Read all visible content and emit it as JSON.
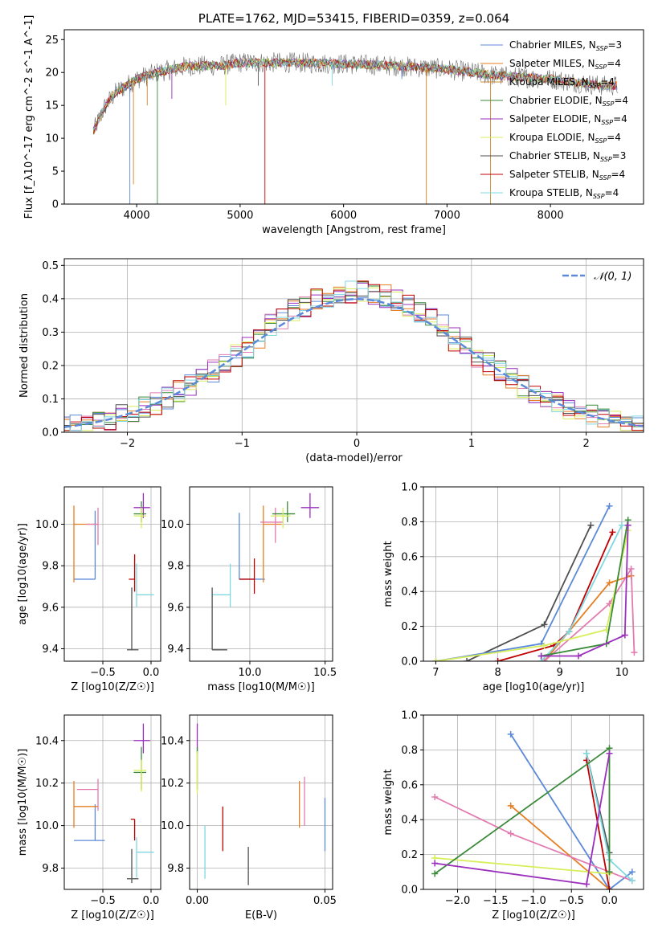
{
  "colors": {
    "Chabrier MILES": "#5b8ad8",
    "Salpeter MILES": "#e67e22",
    "Kroupa MILES": "#c98a30",
    "Chabrier ELODIE": "#3a8a3a",
    "Salpeter ELODIE": "#9b2fbe",
    "Kroupa ELODIE": "#d8ee58",
    "Chabrier STELIB": "#505050",
    "Salpeter STELIB": "#c00000",
    "Kroupa STELIB": "#7fd8e0",
    "pink": "#e27bb0",
    "normal_curve": "#5b8ad8"
  },
  "chart_data": [
    {
      "id": "spectrum",
      "type": "line",
      "title": "PLATE=1762, MJD=53415, FIBERID=0359, z=0.064",
      "xlabel": "wavelength [Angstrom, rest frame]",
      "ylabel": "Flux [f_λ10^-17 erg cm^-2 s^-1 A^-1]",
      "xlim": [
        3300,
        8900
      ],
      "ylim": [
        0,
        26.5
      ],
      "xticks": [
        4000,
        5000,
        6000,
        7000,
        8000
      ],
      "yticks": [
        0,
        5,
        10,
        15,
        20,
        25
      ],
      "legend_position": "top-right",
      "legend": [
        {
          "label": "Chabrier MILES, N_SSP=3",
          "color": "#5b8ad8"
        },
        {
          "label": "Salpeter MILES, N_SSP=4",
          "color": "#e67e22"
        },
        {
          "label": "Kroupa MILES, N_SSP=4",
          "color": "#c98a30"
        },
        {
          "label": "Chabrier ELODIE, N_SSP=4",
          "color": "#3a8a3a"
        },
        {
          "label": "Salpeter ELODIE, N_SSP=4",
          "color": "#9b2fbe"
        },
        {
          "label": "Kroupa ELODIE, N_SSP=4",
          "color": "#d8ee58"
        },
        {
          "label": "Chabrier STELIB, N_SSP=3",
          "color": "#505050"
        },
        {
          "label": "Salpeter STELIB, N_SSP=4",
          "color": "#c00000"
        },
        {
          "label": "Kroupa STELIB, N_SSP=4",
          "color": "#7fd8e0"
        }
      ],
      "continuum": [
        [
          3580,
          11
        ],
        [
          3700,
          15
        ],
        [
          3800,
          17
        ],
        [
          3900,
          18
        ],
        [
          4000,
          19
        ],
        [
          4200,
          20
        ],
        [
          4500,
          21
        ],
        [
          4800,
          21
        ],
        [
          5000,
          21.5
        ],
        [
          5500,
          21.5
        ],
        [
          6000,
          21.3
        ],
        [
          6500,
          21
        ],
        [
          7000,
          20.5
        ],
        [
          7500,
          19.5
        ],
        [
          8000,
          19
        ],
        [
          8500,
          18
        ]
      ],
      "absorption_lines": [
        [
          3934,
          0
        ],
        [
          3969,
          3
        ],
        [
          4102,
          15
        ],
        [
          4200,
          0
        ],
        [
          4340,
          16
        ],
        [
          4861,
          15
        ],
        [
          5175,
          18
        ],
        [
          5240,
          0
        ],
        [
          5890,
          18
        ],
        [
          6563,
          19
        ],
        [
          6800,
          0
        ],
        [
          7420,
          0
        ]
      ]
    },
    {
      "id": "residuals",
      "type": "line",
      "xlabel": "(data-model)/error",
      "ylabel": "Normed distribution",
      "xlim": [
        -2.55,
        2.5
      ],
      "ylim": [
        0,
        0.52
      ],
      "xticks": [
        -2,
        -1,
        0,
        1,
        2
      ],
      "yticks": [
        0.0,
        0.1,
        0.2,
        0.3,
        0.4,
        0.5
      ],
      "grid": true,
      "legend_position": "top-right",
      "legend": [
        {
          "label": "𝒩(0, 1)",
          "color": "#5b8ad8",
          "style": "dashed"
        }
      ],
      "series": [
        {
          "name": "𝒩(0, 1)",
          "mean": 0,
          "sigma": 1
        }
      ],
      "histogram_bin_width": 0.1
    },
    {
      "id": "age_vs_Z",
      "type": "scatter",
      "xlabel": "Z [log10(Z/Z☉)]",
      "ylabel": "age  [log10(age/yr)]",
      "xlim": [
        -0.9,
        0.1
      ],
      "ylim": [
        9.34,
        10.18
      ],
      "xticks": [
        -0.5,
        0.0
      ],
      "yticks": [
        9.4,
        9.6,
        9.8,
        10.0
      ],
      "grid": true,
      "points": [
        {
          "x": -0.58,
          "y": 9.735,
          "xerr": [
            0.22,
            0.0
          ],
          "yerr": [
            0.0,
            0.33
          ],
          "color": "#5b8ad8"
        },
        {
          "x": -0.8,
          "y": 10.0,
          "xerr": [
            0.0,
            0.25
          ],
          "yerr": [
            0.28,
            0.09
          ],
          "color": "#e67e22"
        },
        {
          "x": -0.55,
          "y": 10.0,
          "xerr": [
            0.12,
            0.0
          ],
          "yerr": [
            0.1,
            0.08
          ],
          "color": "#e27bb0"
        },
        {
          "x": -0.15,
          "y": 9.66,
          "xerr": [
            0.0,
            0.18
          ],
          "yerr": [
            0.06,
            0.15
          ],
          "color": "#7fd8e0"
        },
        {
          "x": -0.17,
          "y": 9.735,
          "xerr": [
            0.06,
            0.0
          ],
          "yerr": [
            0.06,
            0.12
          ],
          "color": "#c00000"
        },
        {
          "x": -0.2,
          "y": 9.395,
          "xerr": [
            0.05,
            0.07
          ],
          "yerr": [
            0.0,
            0.3
          ],
          "color": "#505050"
        },
        {
          "x": -0.08,
          "y": 10.08,
          "xerr": [
            0.1,
            0.07
          ],
          "yerr": [
            0.05,
            0.07
          ],
          "color": "#9b2fbe"
        },
        {
          "x": -0.1,
          "y": 10.05,
          "xerr": [
            0.08,
            0.05
          ],
          "yerr": [
            0.04,
            0.06
          ],
          "color": "#3a8a3a"
        },
        {
          "x": -0.1,
          "y": 10.04,
          "xerr": [
            0.08,
            0.05
          ],
          "yerr": [
            0.06,
            0.04
          ],
          "color": "#d8ee58"
        }
      ]
    },
    {
      "id": "age_vs_mass",
      "type": "scatter",
      "xlabel": "mass [log10(M/M☉)]",
      "ylabel": "",
      "xlim": [
        9.6,
        10.55
      ],
      "ylim": [
        9.34,
        10.18
      ],
      "xticks": [
        10.0,
        10.5
      ],
      "yticks": [
        9.4,
        9.6,
        9.8,
        10.0
      ],
      "grid": true,
      "points": [
        {
          "x": 9.93,
          "y": 9.735,
          "xerr": [
            0.0,
            0.17
          ],
          "yerr": [
            0.0,
            0.32
          ],
          "color": "#5b8ad8"
        },
        {
          "x": 10.09,
          "y": 10.0,
          "xerr": [
            0.0,
            0.12
          ],
          "yerr": [
            0.28,
            0.09
          ],
          "color": "#e67e22"
        },
        {
          "x": 10.17,
          "y": 10.01,
          "xerr": [
            0.1,
            0.05
          ],
          "yerr": [
            0.1,
            0.07
          ],
          "color": "#e27bb0"
        },
        {
          "x": 9.87,
          "y": 9.66,
          "xerr": [
            0.12,
            0.0
          ],
          "yerr": [
            0.06,
            0.15
          ],
          "color": "#7fd8e0"
        },
        {
          "x": 10.03,
          "y": 9.735,
          "xerr": [
            0.1,
            0.0
          ],
          "yerr": [
            0.07,
            0.1
          ],
          "color": "#c00000"
        },
        {
          "x": 9.75,
          "y": 9.395,
          "xerr": [
            0.0,
            0.1
          ],
          "yerr": [
            0.0,
            0.3
          ],
          "color": "#505050"
        },
        {
          "x": 10.4,
          "y": 10.08,
          "xerr": [
            0.06,
            0.06
          ],
          "yerr": [
            0.05,
            0.07
          ],
          "color": "#9b2fbe"
        },
        {
          "x": 10.25,
          "y": 10.05,
          "xerr": [
            0.1,
            0.05
          ],
          "yerr": [
            0.04,
            0.06
          ],
          "color": "#3a8a3a"
        },
        {
          "x": 10.22,
          "y": 10.04,
          "xerr": [
            0.08,
            0.05
          ],
          "yerr": [
            0.06,
            0.04
          ],
          "color": "#d8ee58"
        }
      ]
    },
    {
      "id": "weight_vs_age",
      "type": "line",
      "xlabel": "age  [log10(age/yr)]",
      "ylabel": "mass weight",
      "xlim": [
        6.8,
        10.35
      ],
      "ylim": [
        0,
        1.0
      ],
      "xticks": [
        7,
        8,
        9,
        10
      ],
      "yticks": [
        0.0,
        0.2,
        0.4,
        0.6,
        0.8,
        1.0
      ],
      "grid": true,
      "series": [
        {
          "color": "#505050",
          "x": [
            7.5,
            8.75,
            9.5
          ],
          "y": [
            0.0,
            0.21,
            0.78
          ]
        },
        {
          "color": "#5b8ad8",
          "x": [
            7.0,
            8.7,
            9.8
          ],
          "y": [
            0.0,
            0.1,
            0.89
          ]
        },
        {
          "color": "#c00000",
          "x": [
            8.0,
            8.9,
            9.15,
            9.85
          ],
          "y": [
            0.0,
            0.09,
            0.17,
            0.74
          ]
        },
        {
          "color": "#e67e22",
          "x": [
            8.75,
            9.8,
            10.15
          ],
          "y": [
            0.0,
            0.45,
            0.49
          ]
        },
        {
          "color": "#e27bb0",
          "x": [
            8.75,
            9.8,
            10.15,
            10.2
          ],
          "y": [
            0.0,
            0.33,
            0.53,
            0.05
          ]
        },
        {
          "color": "#7fd8e0",
          "x": [
            8.7,
            9.15,
            10.0
          ],
          "y": [
            0.0,
            0.17,
            0.78
          ]
        },
        {
          "color": "#d8ee58",
          "x": [
            7.0,
            8.75,
            9.75,
            10.1
          ],
          "y": [
            0.0,
            0.09,
            0.18,
            0.75
          ]
        },
        {
          "color": "#3a8a3a",
          "x": [
            8.7,
            9.75,
            10.1
          ],
          "y": [
            0.03,
            0.1,
            0.81
          ]
        },
        {
          "color": "#9b2fbe",
          "x": [
            8.7,
            9.3,
            10.05,
            10.1
          ],
          "y": [
            0.03,
            0.03,
            0.15,
            0.78
          ]
        }
      ]
    },
    {
      "id": "mass_vs_Z",
      "type": "scatter",
      "xlabel": "Z [log10(Z/Z☉)]",
      "ylabel": "mass [log10(M/M☉)]",
      "xlim": [
        -0.9,
        0.1
      ],
      "ylim": [
        9.7,
        10.52
      ],
      "xticks": [
        -0.5,
        0.0
      ],
      "yticks": [
        9.8,
        10.0,
        10.2,
        10.4
      ],
      "grid": true,
      "points": [
        {
          "x": -0.58,
          "y": 9.93,
          "xerr": [
            0.22,
            0.1
          ],
          "yerr": [
            0.0,
            0.17
          ],
          "color": "#5b8ad8"
        },
        {
          "x": -0.8,
          "y": 10.09,
          "xerr": [
            0.0,
            0.25
          ],
          "yerr": [
            0.1,
            0.12
          ],
          "color": "#e67e22"
        },
        {
          "x": -0.55,
          "y": 10.17,
          "xerr": [
            0.22,
            0.0
          ],
          "yerr": [
            0.1,
            0.05
          ],
          "color": "#e27bb0"
        },
        {
          "x": -0.15,
          "y": 9.875,
          "xerr": [
            0.0,
            0.18
          ],
          "yerr": [
            0.12,
            0.07
          ],
          "color": "#7fd8e0"
        },
        {
          "x": -0.17,
          "y": 10.03,
          "xerr": [
            0.04,
            0.0
          ],
          "yerr": [
            0.1,
            0.0
          ],
          "color": "#c00000"
        },
        {
          "x": -0.2,
          "y": 9.75,
          "xerr": [
            0.05,
            0.07
          ],
          "yerr": [
            0.02,
            0.14
          ],
          "color": "#505050"
        },
        {
          "x": -0.08,
          "y": 10.4,
          "xerr": [
            0.1,
            0.07
          ],
          "yerr": [
            0.06,
            0.08
          ],
          "color": "#9b2fbe"
        },
        {
          "x": -0.1,
          "y": 10.25,
          "xerr": [
            0.08,
            0.05
          ],
          "yerr": [
            0.08,
            0.12
          ],
          "color": "#3a8a3a"
        },
        {
          "x": -0.1,
          "y": 10.26,
          "xerr": [
            0.08,
            0.05
          ],
          "yerr": [
            0.1,
            0.05
          ],
          "color": "#d8ee58"
        }
      ]
    },
    {
      "id": "mass_vs_EBV",
      "type": "scatter",
      "xlabel": "E(B-V)",
      "ylabel": "",
      "xlim": [
        -0.003,
        0.053
      ],
      "ylim": [
        9.7,
        10.52
      ],
      "xticks": [
        0.0,
        0.05
      ],
      "yticks": [
        9.8,
        10.0,
        10.2,
        10.4
      ],
      "grid": true,
      "points": [
        {
          "x": 0.05,
          "y": 9.95,
          "yerr": [
            0.07,
            0.18
          ],
          "color": "#5b8ad8"
        },
        {
          "x": 0.04,
          "y": 10.09,
          "yerr": [
            0.1,
            0.12
          ],
          "color": "#e67e22"
        },
        {
          "x": 0.042,
          "y": 10.1,
          "yerr": [
            0.1,
            0.13
          ],
          "color": "#e27bb0"
        },
        {
          "x": 0.003,
          "y": 9.87,
          "yerr": [
            0.12,
            0.13
          ],
          "color": "#7fd8e0"
        },
        {
          "x": 0.01,
          "y": 9.985,
          "yerr": [
            0.105,
            0.105
          ],
          "color": "#c00000"
        },
        {
          "x": 0.02,
          "y": 9.81,
          "yerr": [
            0.09,
            0.09
          ],
          "color": "#505050"
        },
        {
          "x": 0.0,
          "y": 10.4,
          "yerr": [
            0.06,
            0.08
          ],
          "color": "#9b2fbe"
        },
        {
          "x": 0.0,
          "y": 10.25,
          "yerr": [
            0.08,
            0.12
          ],
          "color": "#3a8a3a"
        },
        {
          "x": 0.0,
          "y": 10.25,
          "yerr": [
            0.1,
            0.1
          ],
          "color": "#d8ee58"
        }
      ]
    },
    {
      "id": "weight_vs_Z",
      "type": "line",
      "xlabel": "Z [log10(Z/Z☉)]",
      "ylabel": "mass weight",
      "xlim": [
        -2.45,
        0.45
      ],
      "ylim": [
        0,
        1.0
      ],
      "xticks": [
        -2.0,
        -1.5,
        -1.0,
        -0.5,
        0.0
      ],
      "yticks": [
        0.0,
        0.2,
        0.4,
        0.6,
        0.8,
        1.0
      ],
      "grid": true,
      "series": [
        {
          "color": "#5b8ad8",
          "x": [
            -1.3,
            0.0,
            0.3
          ],
          "y": [
            0.89,
            0.0,
            0.1
          ]
        },
        {
          "color": "#e67e22",
          "x": [
            -1.3,
            0.0
          ],
          "y": [
            0.48,
            0.0
          ]
        },
        {
          "color": "#e27bb0",
          "x": [
            -2.3,
            -1.3,
            0.3
          ],
          "y": [
            0.53,
            0.32,
            0.05
          ]
        },
        {
          "color": "#505050",
          "x": [
            -0.3,
            0.0
          ],
          "y": [
            0.78,
            0.21
          ]
        },
        {
          "color": "#c00000",
          "x": [
            -0.3,
            0.0
          ],
          "y": [
            0.74,
            0.0
          ]
        },
        {
          "color": "#7fd8e0",
          "x": [
            -0.3,
            0.0,
            0.3
          ],
          "y": [
            0.78,
            0.17,
            0.05
          ]
        },
        {
          "color": "#d8ee58",
          "x": [
            -2.3,
            0.0
          ],
          "y": [
            0.18,
            0.09
          ]
        },
        {
          "color": "#3a8a3a",
          "x": [
            -2.3,
            0.0,
            0.0
          ],
          "y": [
            0.09,
            0.81,
            0.1
          ]
        },
        {
          "color": "#9b2fbe",
          "x": [
            -2.3,
            -0.3,
            0.0
          ],
          "y": [
            0.15,
            0.03,
            0.78
          ]
        }
      ]
    }
  ]
}
